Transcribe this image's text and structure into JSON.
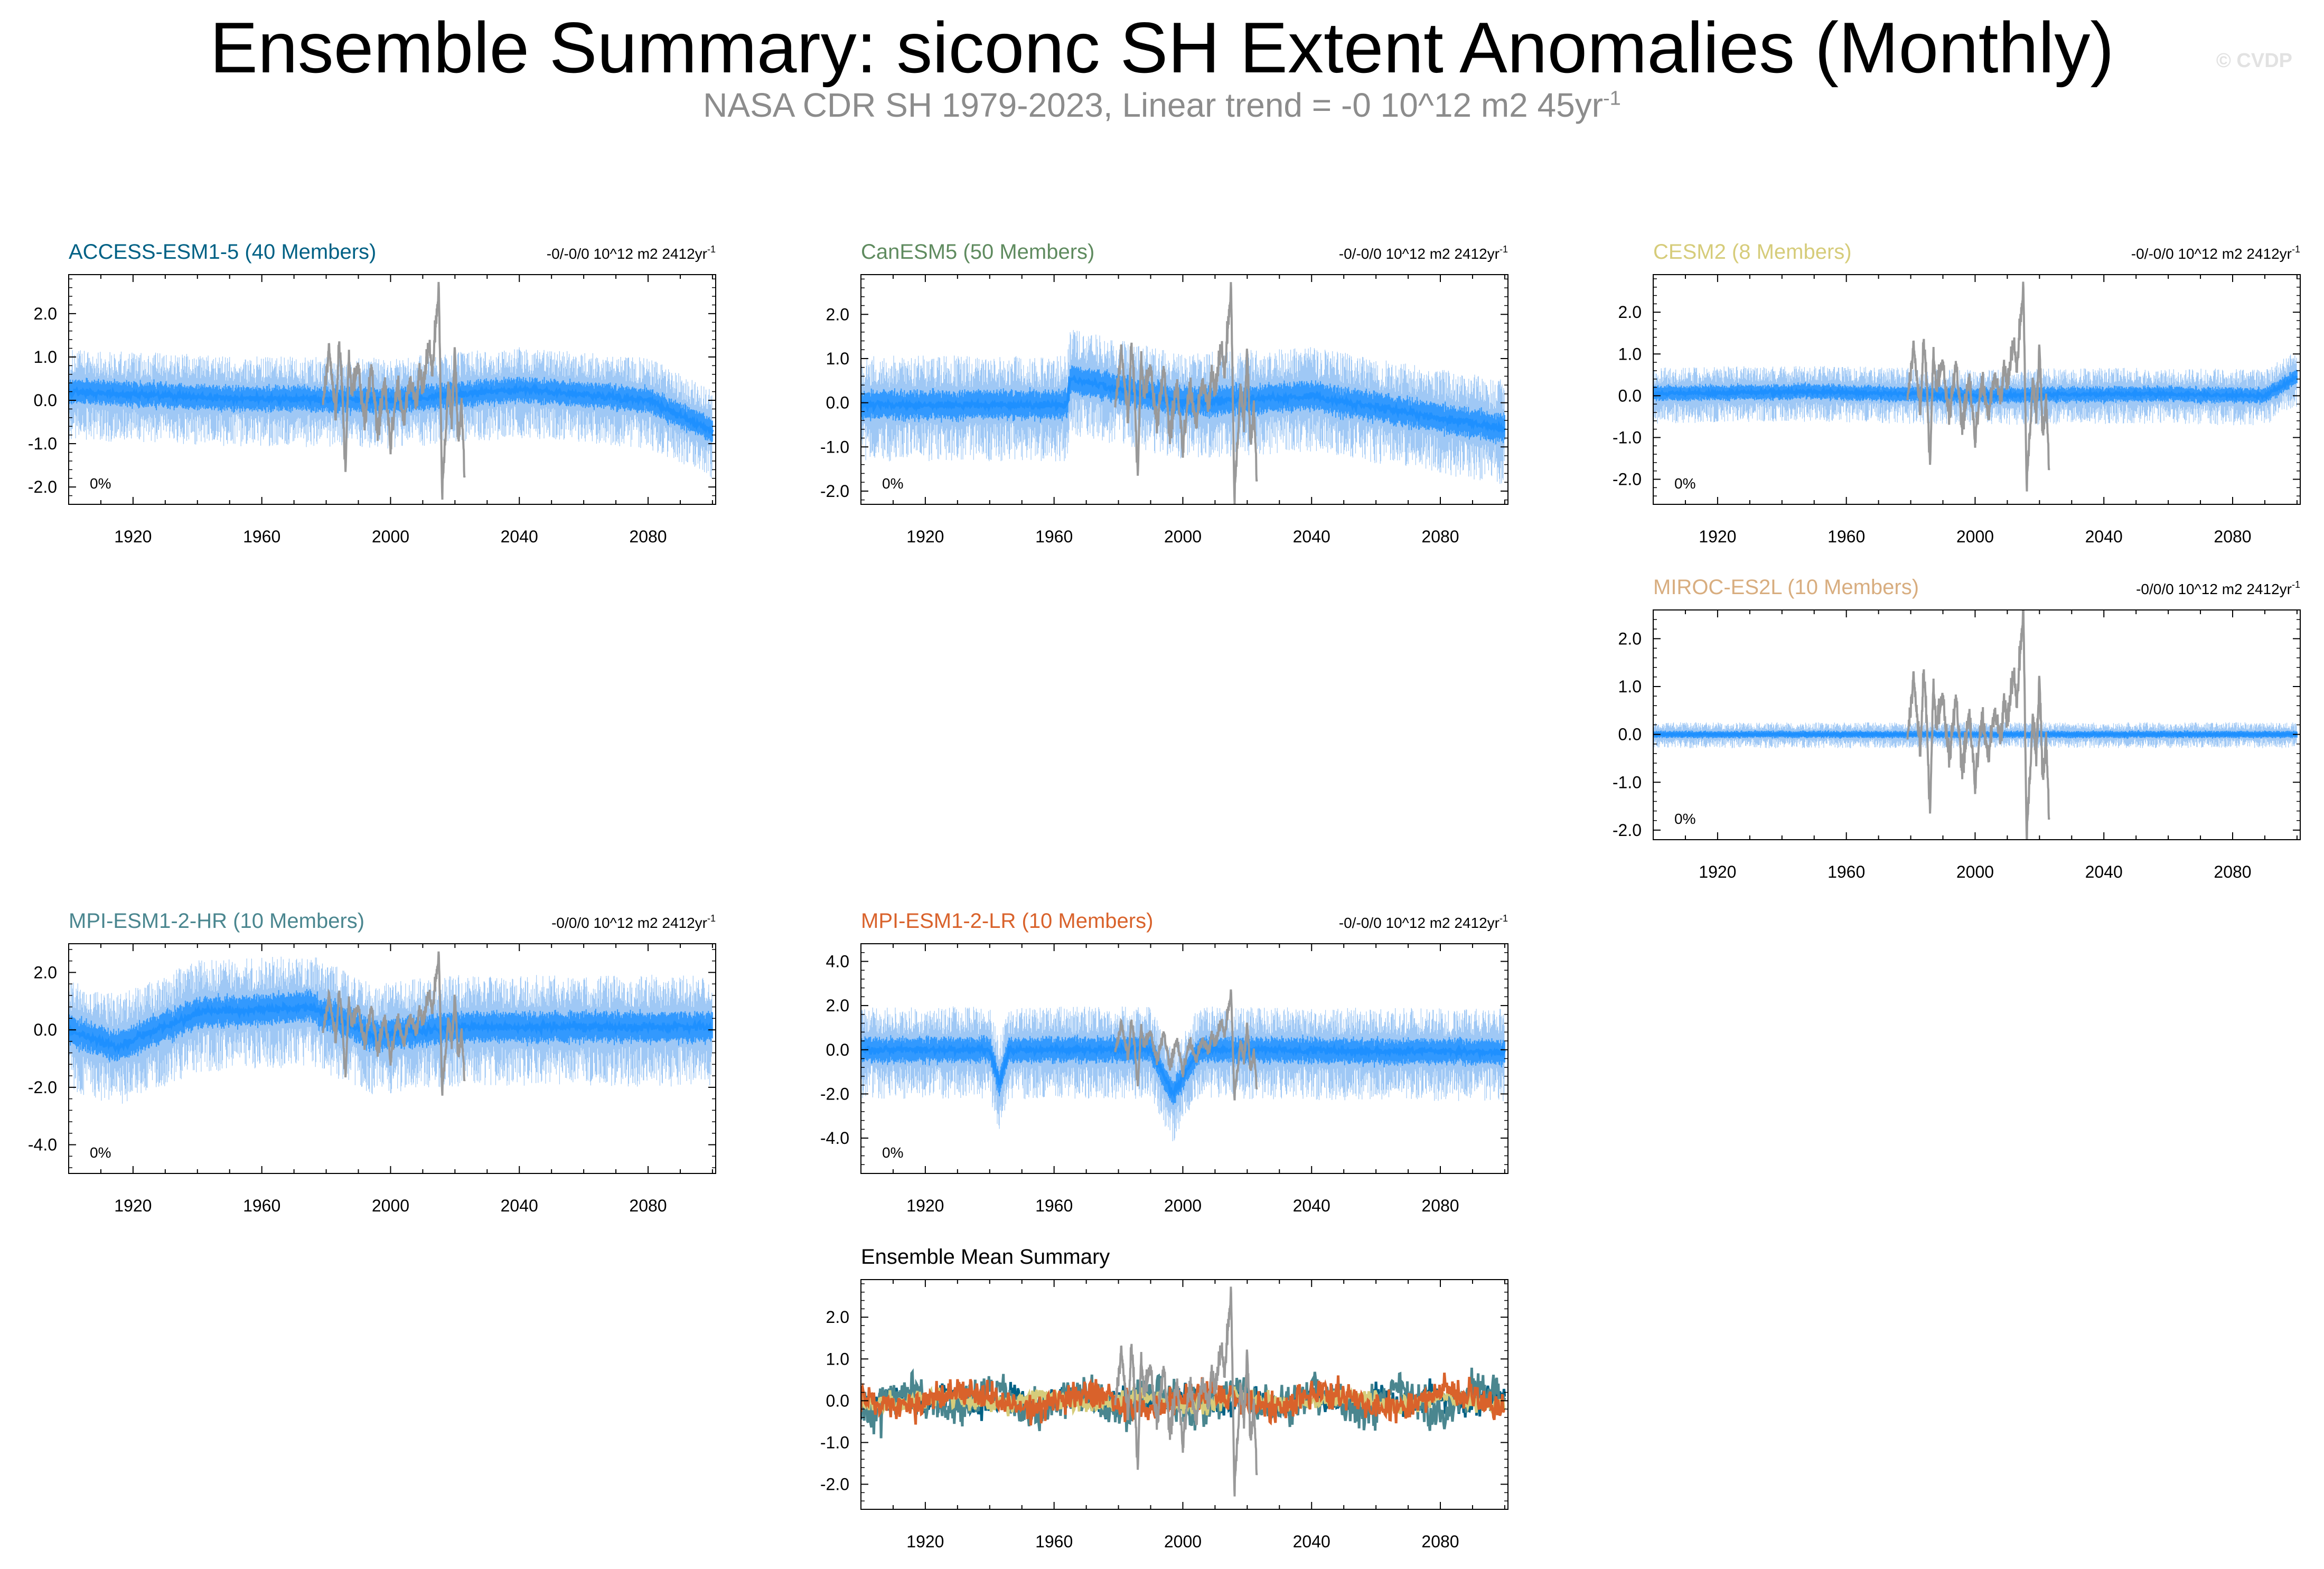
{
  "title": "Ensemble Summary: siconc SH Extent Anomalies (Monthly)",
  "subtitle": "NASA CDR SH 1979-2023, Linear trend = -0 10^12 m2 45yr",
  "subtitle_exponent": "-1",
  "watermark": "© CVDP",
  "colors": {
    "ensemble_envelope": "#1e90ff",
    "ensemble_envelope_light": "#9fc8f5",
    "observations": "#999999",
    "ACCESS-ESM1-5": "#006185",
    "CanESM5": "#5f8b5f",
    "CESM2": "#d6cc7a",
    "MIROC-ES2L": "#d8ad7f",
    "MPI-ESM1-2-HR": "#4a868f",
    "MPI-ESM1-2-LR": "#d9622b"
  },
  "chart_data": [
    {
      "type": "line",
      "name": "ACCESS-ESM1-5 (40 Members)",
      "trend": "-0/-0/0 10^12 m2 2412yr",
      "trend_exp": "-1",
      "pct_label": "0%",
      "xlim": [
        1900,
        2101
      ],
      "ylim": [
        -2.4,
        2.9
      ],
      "xticks": [
        1920,
        1960,
        2000,
        2040,
        2080
      ],
      "yticks": [
        -2.0,
        -1.0,
        0.0,
        1.0,
        2.0
      ],
      "ytick_labels": [
        "-2.0",
        "-1.0",
        "0.0",
        "1.0",
        "2.0"
      ],
      "ensemble_mean_anchors": {
        "x": [
          1900,
          1950,
          2000,
          2040,
          2080,
          2100
        ],
        "y": [
          0.2,
          0.05,
          0.0,
          0.25,
          0.0,
          -0.7
        ]
      },
      "envelope_halfwidth": 0.7,
      "obs_shown": true
    },
    {
      "type": "line",
      "name": "CanESM5 (50 Members)",
      "trend": "-0/-0/0 10^12 m2 2412yr",
      "trend_exp": "-1",
      "pct_label": "0%",
      "xlim": [
        1900,
        2101
      ],
      "ylim": [
        -2.3,
        2.9
      ],
      "xticks": [
        1920,
        1960,
        2000,
        2040,
        2080
      ],
      "yticks": [
        -2.0,
        -1.0,
        0.0,
        1.0,
        2.0
      ],
      "ytick_labels": [
        "-2.0",
        "-1.0",
        "0.0",
        "1.0",
        "2.0"
      ],
      "ensemble_mean_anchors": {
        "x": [
          1900,
          1964,
          1965,
          2000,
          2040,
          2100
        ],
        "y": [
          -0.05,
          -0.05,
          0.55,
          0.0,
          0.15,
          -0.6
        ]
      },
      "envelope_halfwidth": 0.8,
      "obs_shown": true
    },
    {
      "type": "line",
      "name": "CESM2 (8 Members)",
      "trend": "-0/-0/0 10^12 m2 2412yr",
      "trend_exp": "-1",
      "pct_label": "0%",
      "xlim": [
        1900,
        2101
      ],
      "ylim": [
        -2.6,
        2.9
      ],
      "xticks": [
        1920,
        1960,
        2000,
        2040,
        2080
      ],
      "yticks": [
        -2.0,
        -1.0,
        0.0,
        1.0,
        2.0
      ],
      "ytick_labels": [
        "-2.0",
        "-1.0",
        "0.0",
        "1.0",
        "2.0"
      ],
      "ensemble_mean_anchors": {
        "x": [
          1900,
          1950,
          2000,
          2050,
          2090,
          2100
        ],
        "y": [
          0.05,
          0.1,
          0.0,
          0.05,
          0.0,
          0.45
        ]
      },
      "envelope_halfwidth": 0.45,
      "obs_shown": true
    },
    {
      "type": "line",
      "name": "MIROC-ES2L (10 Members)",
      "trend": "-0/0/0 10^12 m2 2412yr",
      "trend_exp": "-1",
      "pct_label": "0%",
      "xlim": [
        1900,
        2101
      ],
      "ylim": [
        -2.2,
        2.6
      ],
      "xticks": [
        1920,
        1960,
        2000,
        2040,
        2080
      ],
      "yticks": [
        -2.0,
        -1.0,
        0.0,
        1.0,
        2.0
      ],
      "ytick_labels": [
        "-2.0",
        "-1.0",
        "0.0",
        "1.0",
        "2.0"
      ],
      "ensemble_mean_anchors": {
        "x": [
          1900,
          2000,
          2100
        ],
        "y": [
          0.0,
          0.0,
          0.0
        ]
      },
      "envelope_halfwidth": 0.18,
      "obs_shown": true
    },
    {
      "type": "line",
      "name": "MPI-ESM1-2-HR (10 Members)",
      "trend": "-0/0/0 10^12 m2 2412yr",
      "trend_exp": "-1",
      "pct_label": "0%",
      "xlim": [
        1900,
        2101
      ],
      "ylim": [
        -5.0,
        3.0
      ],
      "xticks": [
        1920,
        1960,
        2000,
        2040,
        2080
      ],
      "yticks": [
        -4.0,
        -2.0,
        0.0,
        2.0
      ],
      "ytick_labels": [
        "-4.0",
        "-2.0",
        "0.0",
        "2.0"
      ],
      "ensemble_mean_anchors": {
        "x": [
          1900,
          1915,
          1940,
          1975,
          1995,
          2020,
          2100
        ],
        "y": [
          0.0,
          -0.6,
          0.6,
          0.8,
          -0.2,
          0.1,
          0.1
        ]
      },
      "envelope_halfwidth": 1.3,
      "obs_shown": true
    },
    {
      "type": "line",
      "name": "MPI-ESM1-2-LR (10 Members)",
      "trend": "-0/-0/0 10^12 m2 2412yr",
      "trend_exp": "-1",
      "pct_label": "0%",
      "xlim": [
        1900,
        2101
      ],
      "ylim": [
        -5.6,
        4.8
      ],
      "xticks": [
        1920,
        1960,
        2000,
        2040,
        2080
      ],
      "yticks": [
        -4.0,
        -2.0,
        0.0,
        2.0,
        4.0
      ],
      "ytick_labels": [
        "-4.0",
        "-2.0",
        "0.0",
        "2.0",
        "4.0"
      ],
      "ensemble_mean_anchors": {
        "x": [
          1900,
          1940,
          1943,
          1946,
          1990,
          1997,
          2005,
          2100
        ],
        "y": [
          0.0,
          0.0,
          -1.5,
          0.0,
          0.0,
          -2.0,
          0.0,
          -0.1
        ]
      },
      "envelope_halfwidth": 1.4,
      "obs_shown": true
    },
    {
      "type": "line",
      "name": "Ensemble Mean Summary",
      "xlim": [
        1900,
        2101
      ],
      "ylim": [
        -2.6,
        2.9
      ],
      "xticks": [
        1920,
        1960,
        2000,
        2040,
        2080
      ],
      "yticks": [
        -2.0,
        -1.0,
        0.0,
        1.0,
        2.0
      ],
      "ytick_labels": [
        "-2.0",
        "-1.0",
        "0.0",
        "1.0",
        "2.0"
      ],
      "series": [
        {
          "name": "ACCESS-ESM1-5",
          "amp": 0.45
        },
        {
          "name": "MPI-ESM1-2-HR",
          "amp": 0.8
        },
        {
          "name": "CESM2",
          "amp": 0.35
        },
        {
          "name": "MPI-ESM1-2-LR",
          "amp": 0.6
        }
      ],
      "obs_shown": true
    }
  ],
  "observations": {
    "name": "NASA CDR SH",
    "x": [
      1979,
      1981,
      1983,
      1984,
      1985,
      1986,
      1987,
      1988,
      1990,
      1992,
      1994,
      1996,
      1998,
      2000,
      2002,
      2004,
      2006,
      2008,
      2009,
      2010,
      2012,
      2013,
      2014,
      2015,
      2016,
      2017,
      2018,
      2019,
      2020,
      2021,
      2022,
      2023
    ],
    "y": [
      0.0,
      1.2,
      -0.4,
      1.3,
      0.3,
      -1.7,
      1.0,
      0.2,
      0.8,
      -0.6,
      0.9,
      -0.8,
      0.6,
      -1.0,
      0.4,
      -0.5,
      0.5,
      -0.2,
      0.8,
      0.2,
      1.3,
      0.6,
      1.8,
      2.5,
      -2.1,
      -0.9,
      0.4,
      -0.4,
      1.1,
      -1.1,
      0.0,
      -1.8
    ]
  }
}
